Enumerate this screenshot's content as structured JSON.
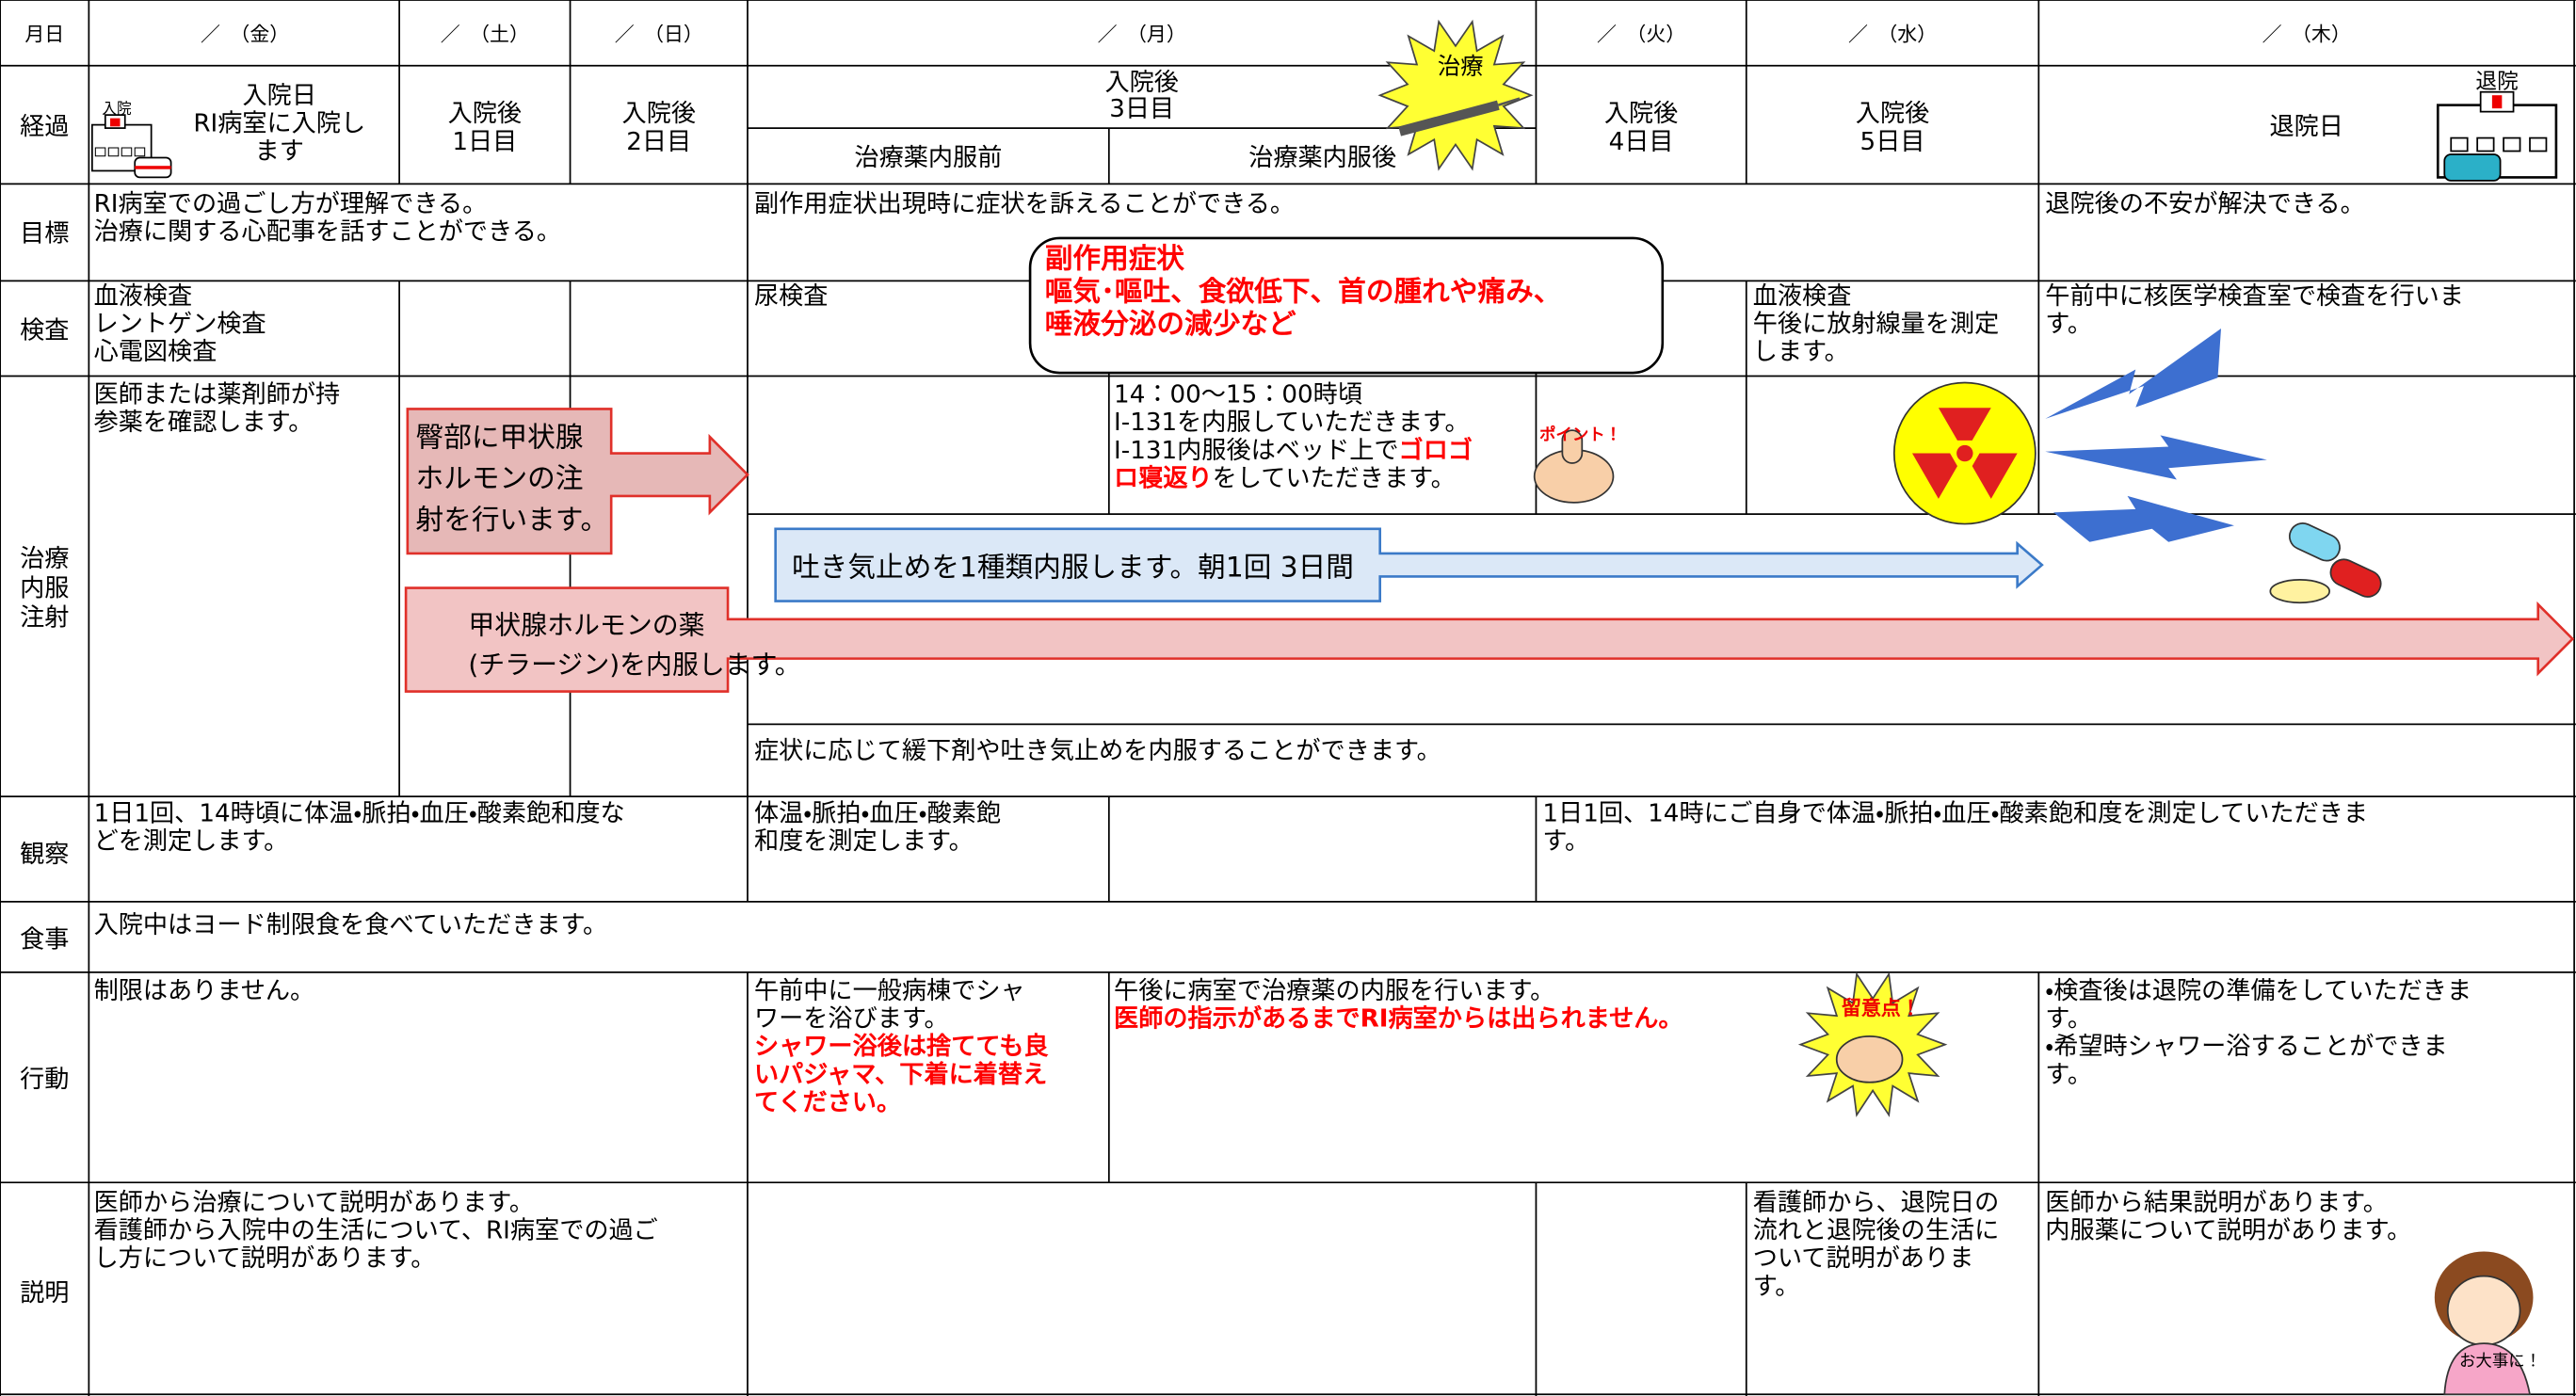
{
  "header": {
    "corner": "月日",
    "days": [
      "／　（金）",
      "／　（土）",
      "／　（日）",
      "／　（月）",
      "／　（火）",
      "／　（水）",
      "／　（木）"
    ]
  },
  "icons": {
    "admission": "入院",
    "discharge": "退院",
    "treatment": "治療",
    "point": "ポイント！",
    "caution": "留意点！",
    "nurse": "お大事に！"
  },
  "progress": {
    "label": "経過",
    "fri": [
      "入院日",
      "RI病室に入院し",
      "ます"
    ],
    "sat": [
      "入院後",
      "1日目"
    ],
    "sun": [
      "入院後",
      "2日目"
    ],
    "mon": [
      "入院後",
      "3日目"
    ],
    "mon_before": "治療薬内服前",
    "mon_after": "治療薬内服後",
    "tue": [
      "入院後",
      "4日目"
    ],
    "wed": [
      "入院後",
      "5日目"
    ],
    "thu": "退院日"
  },
  "goals": {
    "label": "目標",
    "fri_sun": [
      "RI病室での過ごし方が理解できる。",
      "治療に関する心配事を話すことができる。"
    ],
    "mon_wed": "副作用症状出現時に症状を訴えることができる。",
    "thu": "退院後の不安が解決できる。"
  },
  "tests": {
    "label": "検査",
    "fri": [
      "血液検査",
      "レントゲン検査",
      "心電図検査"
    ],
    "mon": "尿検査",
    "wed": [
      "血液検査",
      "午後に放射線量を測定",
      "します。"
    ],
    "thu": [
      "午前中に核医学検査室で検査を行いま",
      "す。"
    ]
  },
  "side_effects": [
    "副作用症状",
    "嘔気･嘔吐、食欲低下、首の腫れや痛み、",
    "唾液分泌の減少など"
  ],
  "treatment": {
    "label": [
      "治療",
      "内服",
      "注射"
    ],
    "fri": [
      "医師または薬剤師が持",
      "参薬を確認します。"
    ],
    "injection": [
      "臀部に甲状腺",
      "ホルモンの注",
      "射を行います。"
    ],
    "mon_after": {
      "lines": [
        "14：00～15：00時頃",
        "I-131を内服していただきます。",
        "I-131内服後はベッド上で"
      ],
      "red": "ゴロゴ",
      "red2": "ロ寝返り",
      "tail": "をしていただきます。"
    },
    "antiemetic": "吐き気止めを1種類内服します。朝1回 3日間",
    "thyroid": [
      "甲状腺ホルモンの薬",
      "(チラージン)を内服します。"
    ],
    "as_needed": "症状に応じて緩下剤や吐き気止めを内服することができます。"
  },
  "observation": {
    "label": "観察",
    "fri_sun": [
      "1日1回、14時頃に体温・脈拍・血圧・酸素飽和度な",
      "どを測定します。"
    ],
    "mon": [
      "体温・脈拍・血圧・酸素飽",
      "和度を測定します。"
    ],
    "tue_thu": [
      "1日1回、14時にご自身で体温・脈拍・血圧・酸素飽和度を測定していただきま",
      "す。"
    ]
  },
  "meals": {
    "label": "食事",
    "text": "入院中はヨード制限食を食べていただきます。"
  },
  "activity": {
    "label": "行動",
    "fri_sun": "制限はありません。",
    "mon": [
      "午前中に一般病棟でシャ",
      "ワーを浴びます。"
    ],
    "mon_red": [
      "シャワー浴後は捨てても良",
      "いパジャマ、下着に着替え",
      "てください。"
    ],
    "mon_after": "午後に病室で治療薬の内服を行います。",
    "mon_after_red": "医師の指示があるまでRI病室からは出られません。",
    "thu": [
      "・検査後は退院の準備をしていただきま",
      "す。",
      "・希望時シャワー浴することができま",
      "す。"
    ]
  },
  "explanation": {
    "label": "説明",
    "fri_sun": [
      "医師から治療について説明があります。",
      "看護師から入院中の生活について、RI病室での過ご",
      "し方について説明があります。"
    ],
    "wed": [
      "看護師から、退院日の",
      "流れと退院後の生活に",
      "ついて説明がありま",
      "す。"
    ],
    "thu": [
      "医師から結果説明があります。",
      "内服薬について説明があります。"
    ]
  }
}
